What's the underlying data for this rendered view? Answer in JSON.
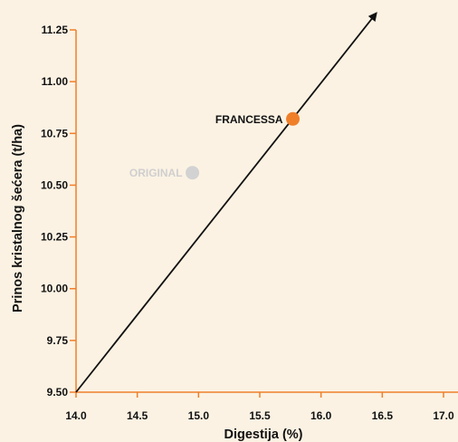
{
  "chart_data": {
    "type": "scatter",
    "xlabel": "Digestija (%)",
    "ylabel": "Prinos kristalnog šećera (t/ha)",
    "xlim": [
      14.0,
      17.0
    ],
    "ylim": [
      9.5,
      11.25
    ],
    "x_ticks": [
      "14.0",
      "14.5",
      "15.0",
      "15.5",
      "16.0",
      "16.5",
      "17.0"
    ],
    "y_ticks": [
      "9.50",
      "9.75",
      "10.00",
      "10.25",
      "10.50",
      "10.75",
      "11.00",
      "11.25"
    ],
    "grid": false,
    "points": [
      {
        "label": "FRANCESSA",
        "x": 15.77,
        "y": 10.82,
        "color": "#f07f2a"
      },
      {
        "label": "ORIGINAL",
        "x": 14.95,
        "y": 10.56,
        "color": "#d2d2d2"
      }
    ],
    "trend_arrow": {
      "from": [
        14.0,
        9.5
      ],
      "to": [
        16.45,
        11.33
      ],
      "color": "#111111"
    },
    "colors": {
      "background": "#fbf2e3",
      "axis": "#f07f2a",
      "text": "#111111"
    }
  }
}
